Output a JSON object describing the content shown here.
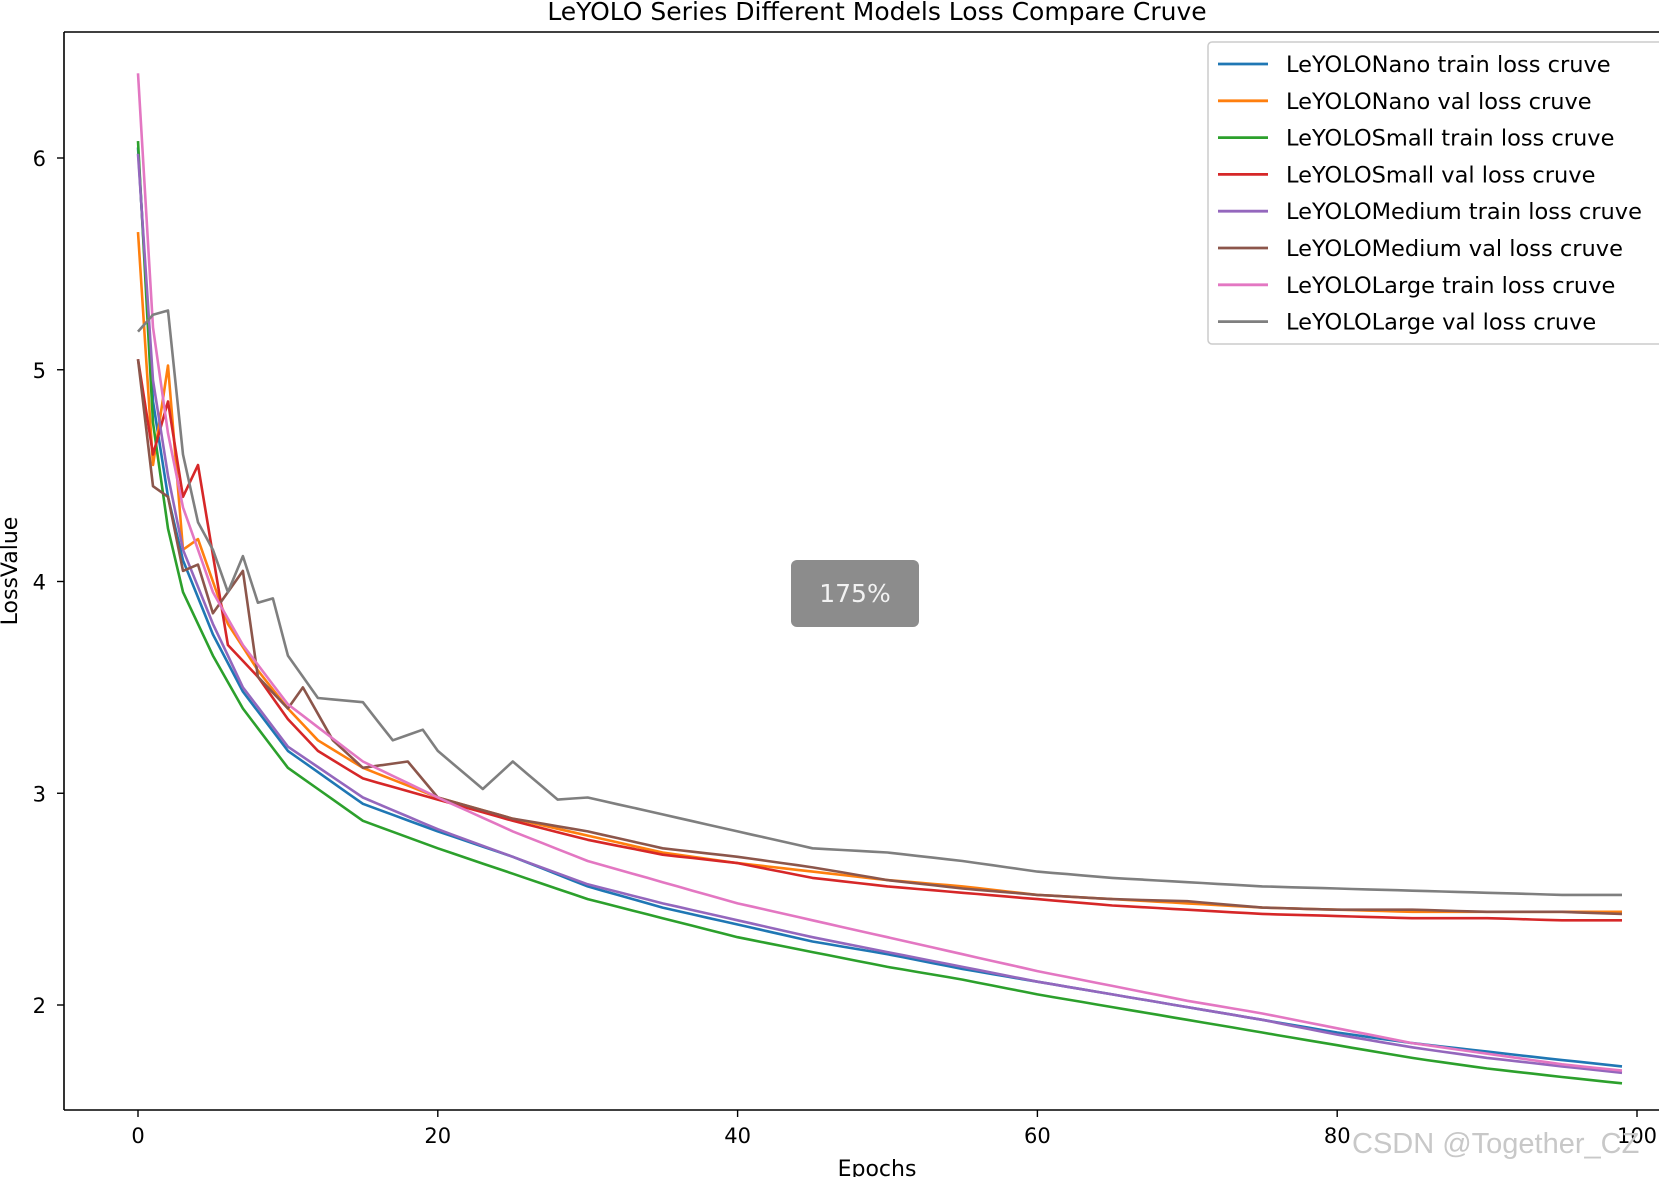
{
  "chart_data": {
    "type": "line",
    "title": "LeYOLO Series Different Models Loss Compare Cruve",
    "xlabel": "Epochs",
    "ylabel": "LossValue",
    "xlim": [
      -5,
      100
    ],
    "ylim": [
      1.4,
      6.6
    ],
    "xticks": [
      0,
      20,
      40,
      60,
      80,
      100
    ],
    "yticks": [
      2,
      3,
      4,
      5,
      6
    ],
    "grid": false,
    "legend_position": "top-right",
    "series": [
      {
        "name": "LeYOLONano train loss cruve",
        "color": "#1f77b4",
        "anchors": [
          [
            0,
            6.05
          ],
          [
            1,
            4.85
          ],
          [
            2,
            4.4
          ],
          [
            3,
            4.1
          ],
          [
            5,
            3.75
          ],
          [
            7,
            3.48
          ],
          [
            10,
            3.2
          ],
          [
            15,
            2.95
          ],
          [
            20,
            2.82
          ],
          [
            25,
            2.7
          ],
          [
            30,
            2.56
          ],
          [
            35,
            2.46
          ],
          [
            40,
            2.38
          ],
          [
            45,
            2.3
          ],
          [
            50,
            2.24
          ],
          [
            55,
            2.17
          ],
          [
            60,
            2.11
          ],
          [
            65,
            2.05
          ],
          [
            70,
            1.99
          ],
          [
            75,
            1.93
          ],
          [
            80,
            1.87
          ],
          [
            85,
            1.82
          ],
          [
            90,
            1.78
          ],
          [
            95,
            1.74
          ],
          [
            99,
            1.71
          ]
        ]
      },
      {
        "name": "LeYOLONano val loss cruve",
        "color": "#ff7f0e",
        "anchors": [
          [
            0,
            5.65
          ],
          [
            1,
            4.55
          ],
          [
            2,
            5.02
          ],
          [
            3,
            4.15
          ],
          [
            4,
            4.2
          ],
          [
            6,
            3.8
          ],
          [
            8,
            3.58
          ],
          [
            10,
            3.4
          ],
          [
            12,
            3.25
          ],
          [
            15,
            3.12
          ],
          [
            20,
            2.98
          ],
          [
            25,
            2.88
          ],
          [
            30,
            2.8
          ],
          [
            35,
            2.72
          ],
          [
            40,
            2.67
          ],
          [
            45,
            2.63
          ],
          [
            50,
            2.59
          ],
          [
            55,
            2.56
          ],
          [
            60,
            2.52
          ],
          [
            65,
            2.5
          ],
          [
            70,
            2.48
          ],
          [
            75,
            2.46
          ],
          [
            80,
            2.45
          ],
          [
            85,
            2.44
          ],
          [
            90,
            2.44
          ],
          [
            95,
            2.44
          ],
          [
            99,
            2.44
          ]
        ]
      },
      {
        "name": "LeYOLOSmall train loss cruve",
        "color": "#2ca02c",
        "anchors": [
          [
            0,
            6.08
          ],
          [
            1,
            4.75
          ],
          [
            2,
            4.25
          ],
          [
            3,
            3.95
          ],
          [
            5,
            3.65
          ],
          [
            7,
            3.4
          ],
          [
            10,
            3.12
          ],
          [
            15,
            2.87
          ],
          [
            20,
            2.74
          ],
          [
            25,
            2.62
          ],
          [
            30,
            2.5
          ],
          [
            35,
            2.41
          ],
          [
            40,
            2.32
          ],
          [
            45,
            2.25
          ],
          [
            50,
            2.18
          ],
          [
            55,
            2.12
          ],
          [
            60,
            2.05
          ],
          [
            65,
            1.99
          ],
          [
            70,
            1.93
          ],
          [
            75,
            1.87
          ],
          [
            80,
            1.81
          ],
          [
            85,
            1.75
          ],
          [
            90,
            1.7
          ],
          [
            95,
            1.66
          ],
          [
            99,
            1.63
          ]
        ]
      },
      {
        "name": "LeYOLOSmall val loss cruve",
        "color": "#d62728",
        "anchors": [
          [
            0,
            5.05
          ],
          [
            1,
            4.6
          ],
          [
            2,
            4.85
          ],
          [
            3,
            4.4
          ],
          [
            4,
            4.55
          ],
          [
            6,
            3.7
          ],
          [
            8,
            3.55
          ],
          [
            10,
            3.35
          ],
          [
            12,
            3.2
          ],
          [
            15,
            3.07
          ],
          [
            20,
            2.97
          ],
          [
            25,
            2.87
          ],
          [
            30,
            2.78
          ],
          [
            35,
            2.71
          ],
          [
            40,
            2.67
          ],
          [
            45,
            2.6
          ],
          [
            50,
            2.56
          ],
          [
            55,
            2.53
          ],
          [
            60,
            2.5
          ],
          [
            65,
            2.47
          ],
          [
            70,
            2.45
          ],
          [
            75,
            2.43
          ],
          [
            80,
            2.42
          ],
          [
            85,
            2.41
          ],
          [
            90,
            2.41
          ],
          [
            95,
            2.4
          ],
          [
            99,
            2.4
          ]
        ]
      },
      {
        "name": "LeYOLOMedium train loss cruve",
        "color": "#9467bd",
        "anchors": [
          [
            0,
            6.02
          ],
          [
            1,
            4.95
          ],
          [
            2,
            4.5
          ],
          [
            3,
            4.15
          ],
          [
            5,
            3.8
          ],
          [
            7,
            3.5
          ],
          [
            10,
            3.22
          ],
          [
            15,
            2.98
          ],
          [
            20,
            2.83
          ],
          [
            25,
            2.7
          ],
          [
            30,
            2.57
          ],
          [
            35,
            2.48
          ],
          [
            40,
            2.4
          ],
          [
            45,
            2.32
          ],
          [
            50,
            2.25
          ],
          [
            55,
            2.18
          ],
          [
            60,
            2.11
          ],
          [
            65,
            2.05
          ],
          [
            70,
            1.99
          ],
          [
            75,
            1.93
          ],
          [
            80,
            1.86
          ],
          [
            85,
            1.8
          ],
          [
            90,
            1.75
          ],
          [
            95,
            1.71
          ],
          [
            99,
            1.68
          ]
        ]
      },
      {
        "name": "LeYOLOMedium val loss cruve",
        "color": "#8c564b",
        "anchors": [
          [
            0,
            5.05
          ],
          [
            1,
            4.45
          ],
          [
            2,
            4.4
          ],
          [
            3,
            4.05
          ],
          [
            4,
            4.08
          ],
          [
            5,
            3.85
          ],
          [
            7,
            4.05
          ],
          [
            8,
            3.55
          ],
          [
            10,
            3.4
          ],
          [
            11,
            3.5
          ],
          [
            13,
            3.25
          ],
          [
            15,
            3.12
          ],
          [
            18,
            3.15
          ],
          [
            20,
            2.98
          ],
          [
            25,
            2.88
          ],
          [
            30,
            2.82
          ],
          [
            35,
            2.74
          ],
          [
            40,
            2.7
          ],
          [
            45,
            2.65
          ],
          [
            50,
            2.59
          ],
          [
            55,
            2.55
          ],
          [
            60,
            2.52
          ],
          [
            65,
            2.5
          ],
          [
            70,
            2.49
          ],
          [
            75,
            2.46
          ],
          [
            80,
            2.45
          ],
          [
            85,
            2.45
          ],
          [
            90,
            2.44
          ],
          [
            95,
            2.44
          ],
          [
            99,
            2.43
          ]
        ]
      },
      {
        "name": "LeYOLOLarge train loss cruve",
        "color": "#e377c2",
        "anchors": [
          [
            0,
            6.4
          ],
          [
            1,
            5.2
          ],
          [
            2,
            4.7
          ],
          [
            3,
            4.35
          ],
          [
            5,
            3.95
          ],
          [
            7,
            3.7
          ],
          [
            10,
            3.42
          ],
          [
            15,
            3.15
          ],
          [
            20,
            2.98
          ],
          [
            25,
            2.82
          ],
          [
            30,
            2.68
          ],
          [
            35,
            2.58
          ],
          [
            40,
            2.48
          ],
          [
            45,
            2.4
          ],
          [
            50,
            2.32
          ],
          [
            55,
            2.24
          ],
          [
            60,
            2.16
          ],
          [
            65,
            2.09
          ],
          [
            70,
            2.02
          ],
          [
            75,
            1.96
          ],
          [
            80,
            1.89
          ],
          [
            85,
            1.82
          ],
          [
            90,
            1.77
          ],
          [
            95,
            1.72
          ],
          [
            99,
            1.69
          ]
        ]
      },
      {
        "name": "LeYOLOLarge val loss cruve",
        "color": "#7f7f7f",
        "anchors": [
          [
            0,
            5.18
          ],
          [
            1,
            5.26
          ],
          [
            2,
            5.28
          ],
          [
            3,
            4.6
          ],
          [
            4,
            4.28
          ],
          [
            5,
            4.15
          ],
          [
            6,
            3.95
          ],
          [
            7,
            4.12
          ],
          [
            8,
            3.9
          ],
          [
            9,
            3.92
          ],
          [
            10,
            3.65
          ],
          [
            12,
            3.45
          ],
          [
            15,
            3.43
          ],
          [
            17,
            3.25
          ],
          [
            19,
            3.3
          ],
          [
            20,
            3.2
          ],
          [
            23,
            3.02
          ],
          [
            25,
            3.15
          ],
          [
            28,
            2.97
          ],
          [
            30,
            2.98
          ],
          [
            35,
            2.9
          ],
          [
            40,
            2.82
          ],
          [
            45,
            2.74
          ],
          [
            50,
            2.72
          ],
          [
            55,
            2.68
          ],
          [
            60,
            2.63
          ],
          [
            65,
            2.6
          ],
          [
            70,
            2.58
          ],
          [
            75,
            2.56
          ],
          [
            80,
            2.55
          ],
          [
            85,
            2.54
          ],
          [
            90,
            2.53
          ],
          [
            95,
            2.52
          ],
          [
            99,
            2.52
          ]
        ]
      }
    ]
  },
  "overlay": {
    "zoom_level": "175%",
    "watermark": "CSDN @Together_CZ"
  }
}
